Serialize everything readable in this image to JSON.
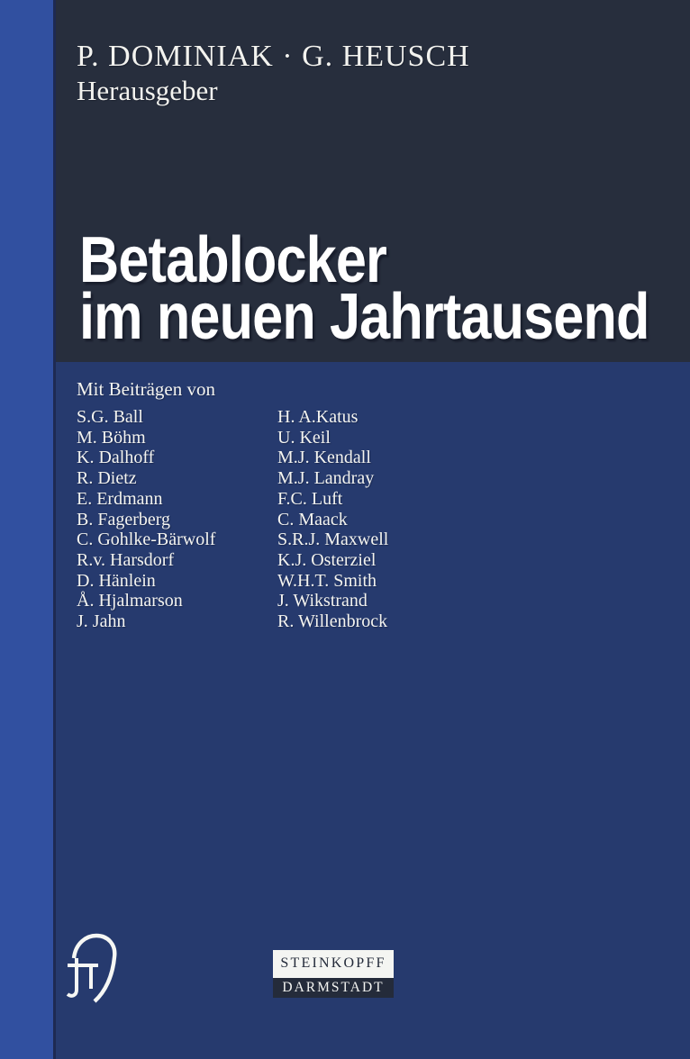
{
  "cover": {
    "authors_line": "P. DOMINIAK · G. HEUSCH",
    "authors_role": "Herausgeber",
    "title_line1": "Betablocker",
    "title_line2": "im neuen Jahrtausend",
    "contributors_heading": "Mit Beiträgen von",
    "contributors_col1": [
      "S.G. Ball",
      "M. Böhm",
      "K. Dalhoff",
      "R. Dietz",
      "E. Erdmann",
      "B. Fagerberg",
      "C. Gohlke-Bärwolf",
      "R.v. Harsdorf",
      "D. Hänlein",
      "Å. Hjalmarson",
      "J. Jahn"
    ],
    "contributors_col2": [
      "H. A.Katus",
      "U. Keil",
      "M.J. Kendall",
      "M.J. Landray",
      "F.C. Luft",
      "C. Maack",
      "S.R.J. Maxwell",
      "K.J. Osterziel",
      "W.H.T. Smith",
      "J. Wikstrand",
      "R. Willenbrock"
    ],
    "publisher_name": "STEINKOPFF",
    "publisher_city": "DARMSTADT",
    "logo_icon": "steinkopff-petal-monogram"
  },
  "colors": {
    "spine_stripe": "#3150a0",
    "top_panel": "#272e3d",
    "bottom_panel": "#263a6e",
    "text_white": "#f4f4f0",
    "publisher_box_dark": "#242b3a",
    "publisher_box_light": "#f4f5f2"
  }
}
